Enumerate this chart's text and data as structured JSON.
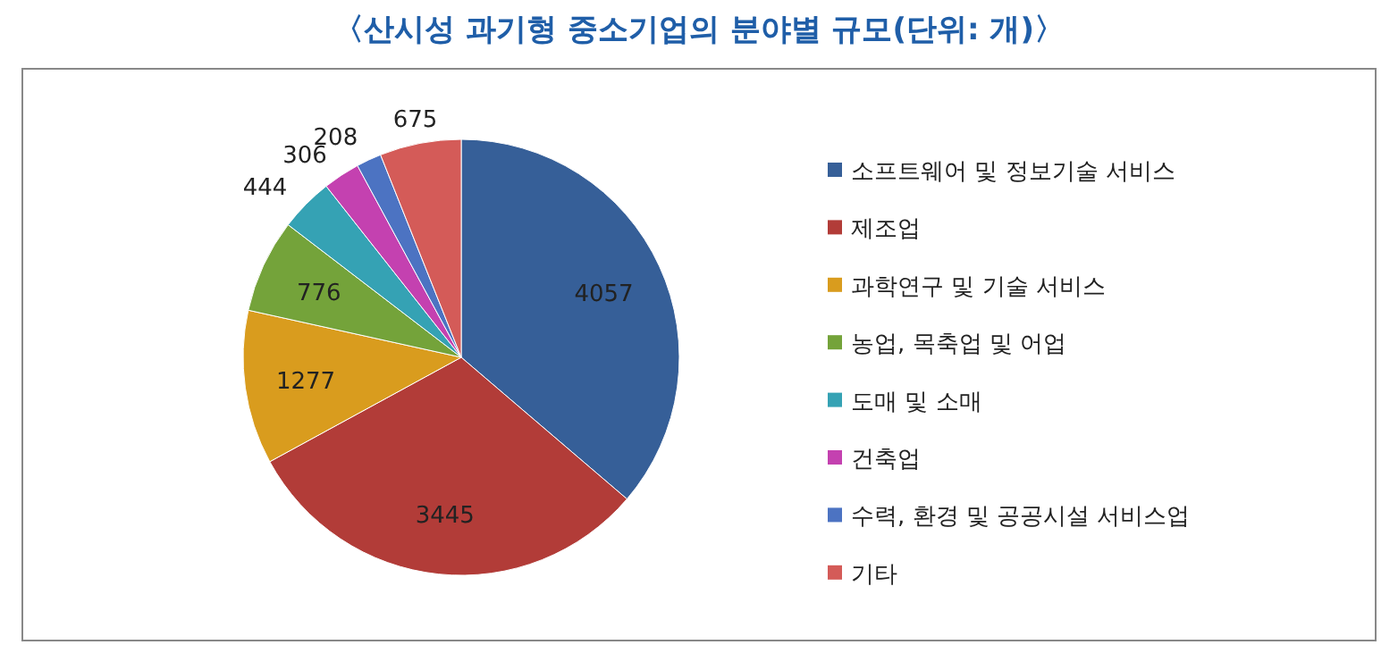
{
  "chart_data": {
    "type": "pie",
    "title": "〈산시성 과기형 중소기업의 분야별 규모(단위: 개)〉",
    "categories": [
      "소프트웨어 및 정보기술 서비스",
      "제조업",
      "과학연구 및 기술 서비스",
      "농업, 목축업 및 어업",
      "도매 및 소매",
      "건축업",
      "수력, 환경 및 공공시설 서비스업",
      "기타"
    ],
    "values": [
      4057,
      3445,
      1277,
      776,
      444,
      306,
      208,
      675
    ],
    "colors": [
      "#365f98",
      "#b23c38",
      "#d99c1e",
      "#74a33a",
      "#35a2b4",
      "#c441b0",
      "#4c73c2",
      "#d45b58"
    ],
    "data_labels": true,
    "legend": "right"
  }
}
